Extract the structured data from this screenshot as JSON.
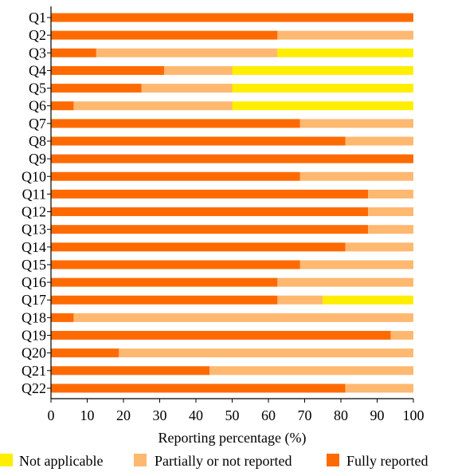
{
  "chart_data": {
    "type": "bar",
    "orientation": "horizontal",
    "stacked": true,
    "title": "",
    "xlabel": "Reporting percentage (%)",
    "ylabel": "",
    "xlim": [
      0,
      100
    ],
    "xticks": [
      "0",
      "10",
      "20",
      "30",
      "40",
      "50",
      "60",
      "70",
      "80",
      "90",
      "100"
    ],
    "categories": [
      "Q1",
      "Q2",
      "Q3",
      "Q4",
      "Q5",
      "Q6",
      "Q7",
      "Q8",
      "Q9",
      "Q10",
      "Q11",
      "Q12",
      "Q13",
      "Q14",
      "Q15",
      "Q16",
      "Q17",
      "Q18",
      "Q19",
      "Q20",
      "Q21",
      "Q22"
    ],
    "series": [
      {
        "name": "Fully reported",
        "color": "#ff6a00",
        "values": [
          100,
          62.5,
          12.5,
          31.25,
          25,
          6.25,
          68.75,
          81.25,
          100,
          68.75,
          87.5,
          87.5,
          87.5,
          81.25,
          68.75,
          62.5,
          62.5,
          6.25,
          93.75,
          18.75,
          43.75,
          81.25
        ]
      },
      {
        "name": "Partially or not reported",
        "color": "#ffb870",
        "values": [
          0,
          37.5,
          50,
          18.75,
          25,
          43.75,
          31.25,
          18.75,
          0,
          31.25,
          12.5,
          12.5,
          12.5,
          18.75,
          31.25,
          37.5,
          12.5,
          93.75,
          6.25,
          81.25,
          56.25,
          18.75
        ]
      },
      {
        "name": "Not applicable",
        "color": "#ffee00",
        "values": [
          0,
          0,
          37.5,
          50,
          50,
          50,
          0,
          0,
          0,
          0,
          0,
          0,
          0,
          0,
          0,
          0,
          25,
          0,
          0,
          0,
          0,
          0
        ]
      }
    ],
    "legend": {
      "placement": "bottom",
      "order": [
        "Not applicable",
        "Partially or not reported",
        "Fully reported"
      ]
    },
    "grid": false
  }
}
